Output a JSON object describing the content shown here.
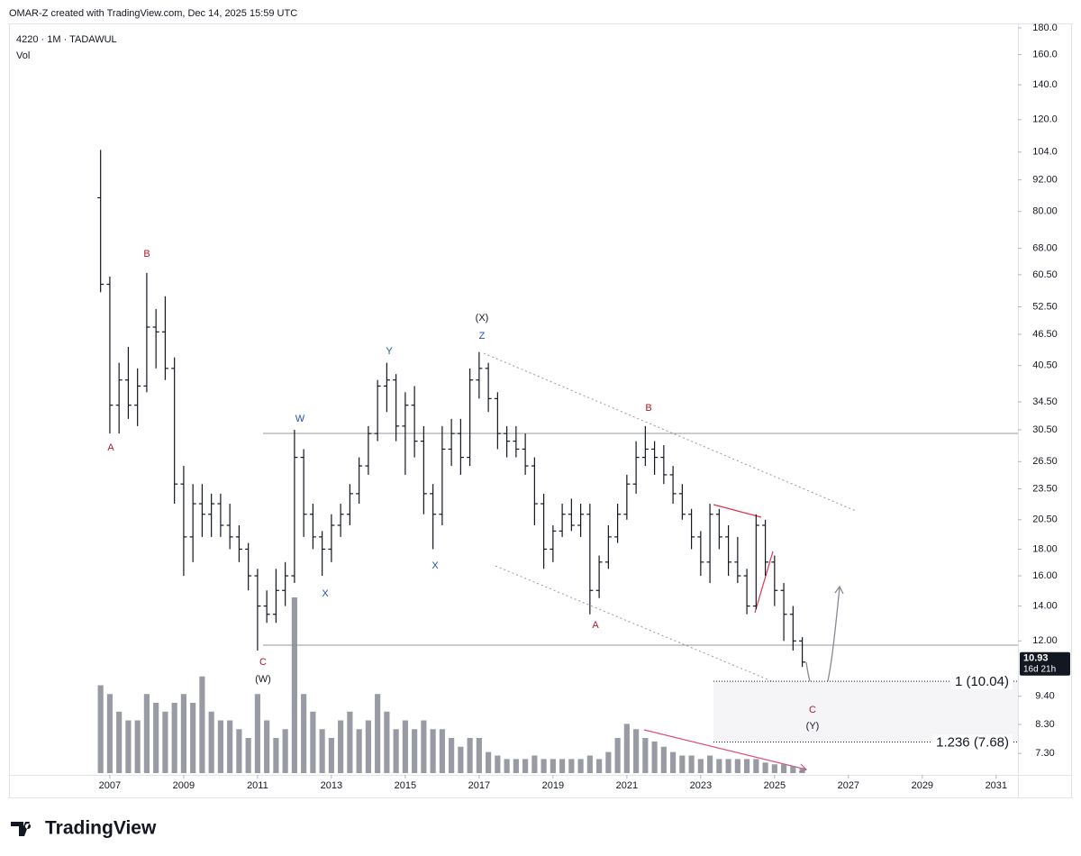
{
  "header": {
    "attribution": "OMAR-Z created with TradingView.com, Dec 14, 2025 15:59 UTC",
    "symbol": "4220 · 1M · TADAWUL",
    "volume_label": "Vol"
  },
  "chart_data": {
    "type": "ohlc",
    "log_scale": true,
    "color": "#131722",
    "volume_color": "#868993",
    "x": [
      2006.75,
      2007,
      2007.25,
      2007.5,
      2007.75,
      2008,
      2008.25,
      2008.5,
      2008.75,
      2009,
      2009.25,
      2009.5,
      2009.75,
      2010,
      2010.25,
      2010.5,
      2010.75,
      2011,
      2011.25,
      2011.5,
      2011.75,
      2012,
      2012.25,
      2012.5,
      2012.75,
      2013,
      2013.25,
      2013.5,
      2013.75,
      2014,
      2014.25,
      2014.5,
      2014.75,
      2015,
      2015.25,
      2015.5,
      2015.75,
      2016,
      2016.25,
      2016.5,
      2016.75,
      2017,
      2017.25,
      2017.5,
      2017.75,
      2018,
      2018.25,
      2018.5,
      2018.75,
      2019,
      2019.25,
      2019.5,
      2019.75,
      2020,
      2020.25,
      2020.5,
      2020.75,
      2021,
      2021.25,
      2021.5,
      2021.75,
      2022,
      2022.25,
      2022.5,
      2022.75,
      2023,
      2023.25,
      2023.5,
      2023.75,
      2024,
      2024.25,
      2024.5,
      2024.75,
      2025,
      2025.25,
      2025.5,
      2025.75
    ],
    "open": [
      85,
      58,
      34,
      38,
      34,
      37,
      48,
      47,
      40,
      24,
      19,
      22,
      21,
      22,
      20,
      19,
      18,
      16,
      14,
      13.5,
      15,
      16,
      27,
      21,
      19,
      18,
      20,
      21,
      23,
      26,
      30,
      37,
      38,
      31,
      34,
      29,
      23,
      21,
      28,
      30,
      27,
      38,
      40,
      35,
      30,
      29,
      28,
      26,
      22,
      18,
      19.5,
      21,
      20,
      21,
      15,
      17,
      19,
      21,
      24,
      27,
      28,
      27,
      25,
      23,
      21,
      19,
      17,
      21,
      19,
      17,
      16,
      14,
      20,
      17,
      15,
      13.5,
      12
    ],
    "high": [
      105,
      60,
      41,
      44,
      40,
      61,
      52,
      55,
      42,
      26,
      24,
      24,
      23,
      23,
      22,
      20,
      18.5,
      16.5,
      15,
      16.5,
      17,
      30.5,
      28,
      22,
      19.5,
      21,
      22,
      24,
      27,
      31,
      38,
      41,
      39,
      36,
      37,
      31,
      24,
      31,
      32,
      32,
      40,
      43,
      41,
      36,
      31,
      31,
      30,
      27,
      23,
      20,
      22,
      22.5,
      22,
      22,
      17.5,
      20,
      22,
      25,
      29,
      31,
      29,
      28.5,
      26,
      24,
      21.5,
      19.5,
      22,
      21.5,
      20,
      19,
      16.5,
      21,
      20.5,
      17.5,
      15.5,
      14,
      12.2
    ],
    "low": [
      56,
      30,
      30,
      32,
      31,
      36,
      40,
      38,
      22,
      16,
      17,
      19,
      19,
      19,
      18,
      17,
      15,
      11.5,
      13,
      13,
      14,
      15.5,
      19,
      18,
      16,
      17,
      19,
      20,
      22,
      25,
      29,
      33,
      29,
      25,
      27,
      21,
      18,
      20,
      26,
      25,
      26,
      35,
      33,
      28,
      27,
      27,
      25,
      20,
      16.5,
      17,
      19,
      19.5,
      19,
      13.5,
      14.5,
      16.5,
      18.5,
      20.5,
      23,
      26,
      25,
      24,
      22,
      20.5,
      18,
      16,
      15.5,
      18,
      16,
      15.5,
      13.5,
      13.8,
      16,
      14,
      12,
      11.5,
      10.7
    ],
    "close": [
      58,
      34,
      38,
      34,
      37,
      48,
      47,
      40,
      24,
      19,
      22,
      21,
      22,
      20,
      19,
      18,
      16,
      14,
      13.5,
      15,
      16,
      27,
      21,
      19,
      18,
      20,
      21,
      23,
      26,
      30,
      37,
      38,
      31,
      34,
      29,
      23,
      21,
      28,
      30,
      27,
      38,
      40,
      35,
      30,
      29,
      28,
      26,
      22,
      18,
      19.5,
      21,
      20,
      21,
      15,
      17,
      19,
      21,
      24,
      27,
      28,
      27,
      25,
      23,
      21,
      19,
      17,
      21,
      19,
      17,
      16,
      14,
      20,
      17,
      15,
      13.5,
      12,
      10.93
    ],
    "volume": [
      50,
      45,
      35,
      30,
      30,
      45,
      40,
      35,
      40,
      45,
      40,
      55,
      35,
      30,
      30,
      25,
      20,
      45,
      30,
      20,
      25,
      100,
      45,
      35,
      25,
      20,
      30,
      35,
      25,
      30,
      45,
      35,
      25,
      30,
      25,
      30,
      25,
      25,
      20,
      15,
      20,
      20,
      12,
      10,
      8,
      8,
      8,
      10,
      8,
      8,
      8,
      8,
      8,
      10,
      8,
      12,
      20,
      28,
      25,
      20,
      18,
      15,
      12,
      10,
      10,
      8,
      10,
      8,
      8,
      8,
      8,
      8,
      6,
      5,
      5,
      4,
      3
    ],
    "ylim": [
      6.64,
      183.6
    ],
    "yticks": [
      {
        "value": 7.3,
        "label": "7.30"
      },
      {
        "value": 8.3,
        "label": "8.30"
      },
      {
        "value": 9.4,
        "label": "9.40"
      },
      {
        "value": 12,
        "label": "12.00"
      },
      {
        "value": 14,
        "label": "14.00"
      },
      {
        "value": 16,
        "label": "16.00"
      },
      {
        "value": 18,
        "label": "18.00"
      },
      {
        "value": 20.5,
        "label": "20.50"
      },
      {
        "value": 23.5,
        "label": "23.50"
      },
      {
        "value": 26.5,
        "label": "26.50"
      },
      {
        "value": 30.5,
        "label": "30.50"
      },
      {
        "value": 34.5,
        "label": "34.50"
      },
      {
        "value": 40.5,
        "label": "40.50"
      },
      {
        "value": 46.5,
        "label": "46.50"
      },
      {
        "value": 52.5,
        "label": "52.50"
      },
      {
        "value": 60.5,
        "label": "60.50"
      },
      {
        "value": 68,
        "label": "68.00"
      },
      {
        "value": 80,
        "label": "80.00"
      },
      {
        "value": 92,
        "label": "92.00"
      },
      {
        "value": 104,
        "label": "104.0"
      },
      {
        "value": 120,
        "label": "120.0"
      },
      {
        "value": 140,
        "label": "140.0"
      },
      {
        "value": 160,
        "label": "160.0"
      },
      {
        "value": 180,
        "label": "180.0"
      }
    ],
    "xlim": [
      2004.27,
      2031.59
    ],
    "xticks": [
      2007,
      2009,
      2011,
      2013,
      2015,
      2017,
      2019,
      2021,
      2023,
      2025,
      2027,
      2029,
      2031
    ],
    "countdown": "16d 21h",
    "fib_levels": [
      {
        "value": 10.04,
        "label": "1 (10.04)"
      },
      {
        "value": 7.68,
        "label": "1.236 (7.68)"
      }
    ],
    "annotations": [
      {
        "text": "A",
        "color": "#b2182b"
      },
      {
        "text": "B",
        "color": "#b2182b"
      },
      {
        "text": "C",
        "color": "#b2182b"
      },
      {
        "text": "(W)",
        "color": "#131722"
      },
      {
        "text": "W",
        "color": "#1f4fb4"
      },
      {
        "text": "X",
        "color": "#1f4fb4"
      },
      {
        "text": "Y",
        "color": "#1f4fb4"
      },
      {
        "text": "X",
        "color": "#1f4fb4"
      },
      {
        "text": "Z",
        "color": "#1f4fb4"
      },
      {
        "text": "(X)",
        "color": "#131722"
      },
      {
        "text": "A",
        "color": "#b2182b"
      },
      {
        "text": "B",
        "color": "#b2182b"
      },
      {
        "text": "C",
        "color": "#b2182b"
      },
      {
        "text": "(Y)",
        "color": "#131722"
      }
    ]
  },
  "footer": {
    "brand": "TradingView"
  }
}
